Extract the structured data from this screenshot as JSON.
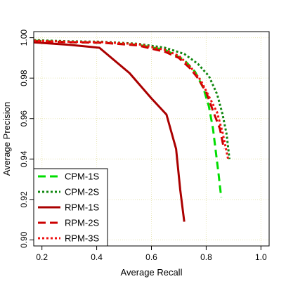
{
  "chart_data": {
    "type": "line",
    "title": "",
    "xlabel": "Average Recall",
    "ylabel": "Average Precision",
    "xlim": [
      0.17,
      1.03
    ],
    "ylim": [
      0.897,
      1.003
    ],
    "x_ticks": [
      0.2,
      0.4,
      0.6,
      0.8,
      1.0
    ],
    "x_tick_labels": [
      "0.2",
      "0.4",
      "0.6",
      "0.8",
      "1.0"
    ],
    "y_ticks": [
      0.9,
      0.92,
      0.94,
      0.96,
      0.98,
      1.0
    ],
    "y_tick_labels": [
      "0.90",
      "0.92",
      "0.94",
      "0.96",
      "0.98",
      "1.00"
    ],
    "grid": true,
    "legend_position": "bottom-left",
    "series": [
      {
        "name": "CPM-1S",
        "color": "#00dd00",
        "dash": "long-dash",
        "width": 3,
        "points": [
          [
            0.17,
            0.9985
          ],
          [
            0.3,
            0.9978
          ],
          [
            0.42,
            0.9975
          ],
          [
            0.55,
            0.9965
          ],
          [
            0.65,
            0.994
          ],
          [
            0.72,
            0.989
          ],
          [
            0.76,
            0.983
          ],
          [
            0.79,
            0.975
          ],
          [
            0.81,
            0.966
          ],
          [
            0.825,
            0.955
          ],
          [
            0.835,
            0.944
          ],
          [
            0.845,
            0.933
          ],
          [
            0.855,
            0.921
          ]
        ]
      },
      {
        "name": "CPM-2S",
        "color": "#118811",
        "dash": "dotted",
        "width": 3,
        "points": [
          [
            0.17,
            0.9988
          ],
          [
            0.3,
            0.9982
          ],
          [
            0.42,
            0.998
          ],
          [
            0.55,
            0.997
          ],
          [
            0.65,
            0.995
          ],
          [
            0.72,
            0.992
          ],
          [
            0.77,
            0.987
          ],
          [
            0.81,
            0.981
          ],
          [
            0.84,
            0.972
          ],
          [
            0.86,
            0.962
          ],
          [
            0.875,
            0.952
          ],
          [
            0.885,
            0.94
          ]
        ]
      },
      {
        "name": "RPM-1S",
        "color": "#aa0000",
        "dash": "solid",
        "width": 3,
        "points": [
          [
            0.17,
            0.9977
          ],
          [
            0.3,
            0.9965
          ],
          [
            0.41,
            0.995
          ],
          [
            0.52,
            0.9825
          ],
          [
            0.6,
            0.97
          ],
          [
            0.655,
            0.962
          ],
          [
            0.69,
            0.945
          ],
          [
            0.705,
            0.925
          ],
          [
            0.72,
            0.909
          ]
        ]
      },
      {
        "name": "RPM-2S",
        "color": "#cc0000",
        "dash": "long-dash",
        "width": 3,
        "points": [
          [
            0.17,
            0.9982
          ],
          [
            0.3,
            0.9978
          ],
          [
            0.42,
            0.9975
          ],
          [
            0.55,
            0.9962
          ],
          [
            0.65,
            0.993
          ],
          [
            0.7,
            0.99
          ],
          [
            0.74,
            0.985
          ],
          [
            0.77,
            0.98
          ],
          [
            0.8,
            0.973
          ],
          [
            0.83,
            0.962
          ],
          [
            0.85,
            0.955
          ],
          [
            0.865,
            0.945
          ]
        ]
      },
      {
        "name": "RPM-3S",
        "color": "#ee1111",
        "dash": "dotted",
        "width": 3,
        "points": [
          [
            0.17,
            0.9985
          ],
          [
            0.3,
            0.998
          ],
          [
            0.42,
            0.9978
          ],
          [
            0.55,
            0.9968
          ],
          [
            0.65,
            0.994
          ],
          [
            0.7,
            0.991
          ],
          [
            0.74,
            0.986
          ],
          [
            0.78,
            0.979
          ],
          [
            0.81,
            0.971
          ],
          [
            0.84,
            0.963
          ],
          [
            0.86,
            0.953
          ],
          [
            0.88,
            0.94
          ]
        ]
      }
    ]
  }
}
